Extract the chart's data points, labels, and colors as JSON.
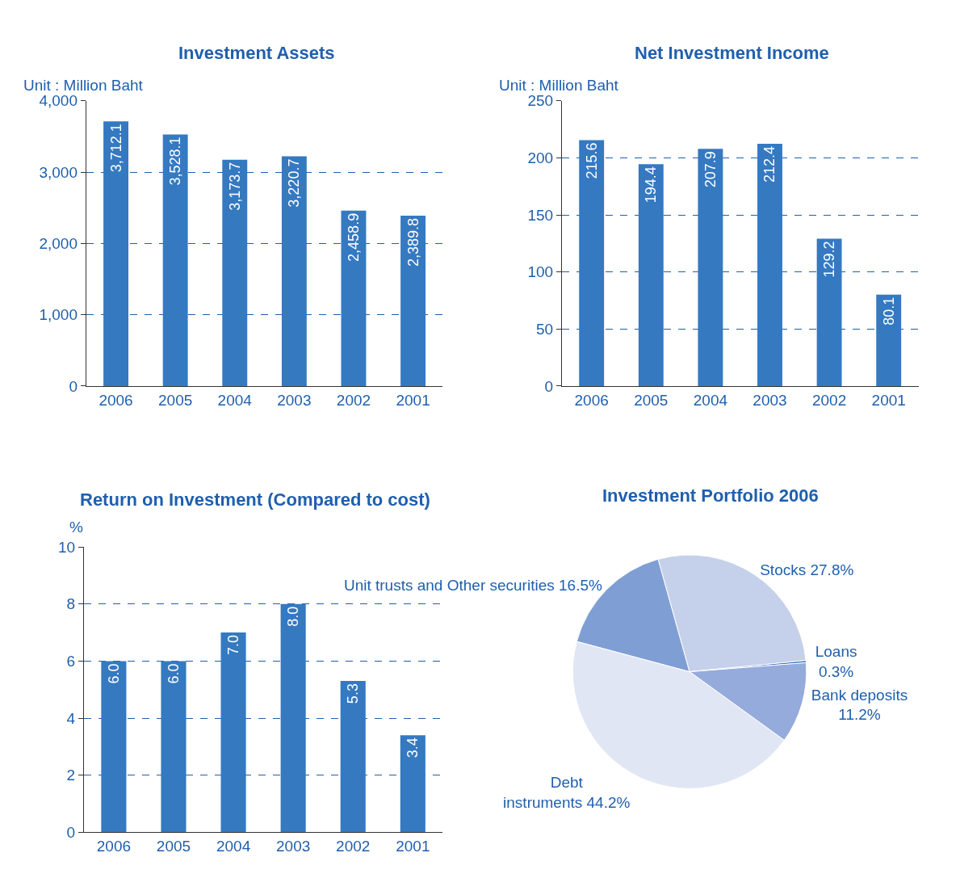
{
  "chart_data": [
    {
      "type": "bar",
      "title": "Investment Assets",
      "ylabel": "Unit : Million Baht",
      "categories": [
        "2006",
        "2005",
        "2004",
        "2003",
        "2002",
        "2001"
      ],
      "values": [
        3712.1,
        3528.1,
        3173.7,
        3220.7,
        2458.9,
        2389.8
      ],
      "value_labels": [
        "3,712.1",
        "3,528.1",
        "3,173.7",
        "3,220.7",
        "2,458.9",
        "2,389.8"
      ],
      "color": "#3579c1",
      "ylim": [
        0,
        4000
      ],
      "yticks": [
        {
          "value": 0,
          "label": "0"
        },
        {
          "value": 1000,
          "label": "1,000"
        },
        {
          "value": 2000,
          "label": "2,000"
        },
        {
          "value": 3000,
          "label": "3,000"
        },
        {
          "value": 4000,
          "label": "4,000"
        }
      ],
      "grid": "y"
    },
    {
      "type": "bar",
      "title": "Net Investment Income",
      "ylabel": "Unit : Million Baht",
      "categories": [
        "2006",
        "2005",
        "2004",
        "2003",
        "2002",
        "2001"
      ],
      "values": [
        215.6,
        194.4,
        207.9,
        212.4,
        129.2,
        80.1
      ],
      "color": "#3579c1",
      "ylim": [
        0,
        250
      ],
      "yticks": [
        0,
        50,
        100,
        150,
        200,
        250
      ],
      "grid": "y",
      "data_labels": true
    },
    {
      "type": "bar",
      "title": "Return on Investment (Compared to cost)",
      "ylabel": "%",
      "categories": [
        "2006",
        "2005",
        "2004",
        "2003",
        "2002",
        "2001"
      ],
      "values": [
        6.0,
        6.0,
        7.0,
        8.0,
        5.3,
        3.4
      ],
      "value_labels": [
        "6.0",
        "6.0",
        "7.0",
        "8.0",
        "5.3",
        "3.4"
      ],
      "color": "#3579c1",
      "ylim": [
        0,
        10
      ],
      "yticks": [
        0,
        2,
        4,
        6,
        8,
        10
      ],
      "grid": "y"
    },
    {
      "type": "pie",
      "title": "Investment Portfolio 2006",
      "categories": [
        "Unit trusts and Other securities 16.5%",
        "Stocks 27.8%",
        "Loans\n0.3%",
        "Bank deposits\n11.2%",
        "Debt\ninstruments 44.2%"
      ],
      "values": [
        16.5,
        27.8,
        0.3,
        11.2,
        44.2
      ],
      "colors": [
        "#7f9ed4",
        "#c5d0ea",
        "#3a6fc0",
        "#95abdc",
        "#e1e6f4"
      ]
    }
  ]
}
